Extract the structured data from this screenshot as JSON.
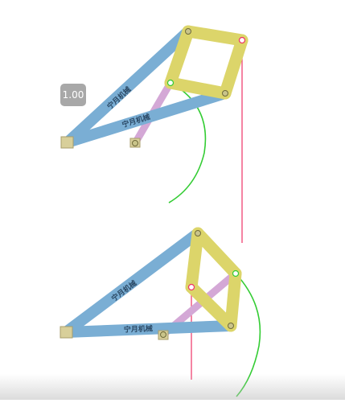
{
  "playback": {
    "speed_label": "1.00"
  },
  "links": {
    "watermark_text": "宁月机械"
  },
  "colors": {
    "blue_link": "#7aaed4",
    "blue_link_edge": "#5b90b8",
    "yellow_link": "#dcd56a",
    "yellow_link_edge": "#bdb54a",
    "purple_link": "#d4a8d6",
    "purple_link_edge": "#b683b8",
    "ground_block": "#d8cf9a",
    "green_path": "#33cc33",
    "red_path": "#ee3366"
  }
}
